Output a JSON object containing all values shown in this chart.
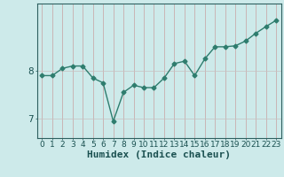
{
  "x": [
    0,
    1,
    2,
    3,
    4,
    5,
    6,
    7,
    8,
    9,
    10,
    11,
    12,
    13,
    14,
    15,
    16,
    17,
    18,
    19,
    20,
    21,
    22,
    23
  ],
  "y": [
    7.9,
    7.9,
    8.05,
    8.1,
    8.1,
    7.85,
    7.75,
    6.95,
    7.55,
    7.7,
    7.65,
    7.65,
    7.85,
    8.15,
    8.2,
    7.9,
    8.25,
    8.5,
    8.5,
    8.52,
    8.62,
    8.78,
    8.92,
    9.05
  ],
  "line_color": "#2e7d6e",
  "marker": "D",
  "marker_size": 2.5,
  "bg_color": "#cdeaea",
  "plot_bg_color": "#cdeaea",
  "grid_color_v": "#c8a0a0",
  "grid_color_h": "#c8c0c0",
  "xlabel": "Humidex (Indice chaleur)",
  "xlabel_fontsize": 8,
  "yticks": [
    7,
    8
  ],
  "ylim": [
    6.6,
    9.4
  ],
  "xlim": [
    -0.5,
    23.5
  ],
  "xticks": [
    0,
    1,
    2,
    3,
    4,
    5,
    6,
    7,
    8,
    9,
    10,
    11,
    12,
    13,
    14,
    15,
    16,
    17,
    18,
    19,
    20,
    21,
    22,
    23
  ],
  "tick_fontsize": 6.5,
  "line_width": 1.0
}
